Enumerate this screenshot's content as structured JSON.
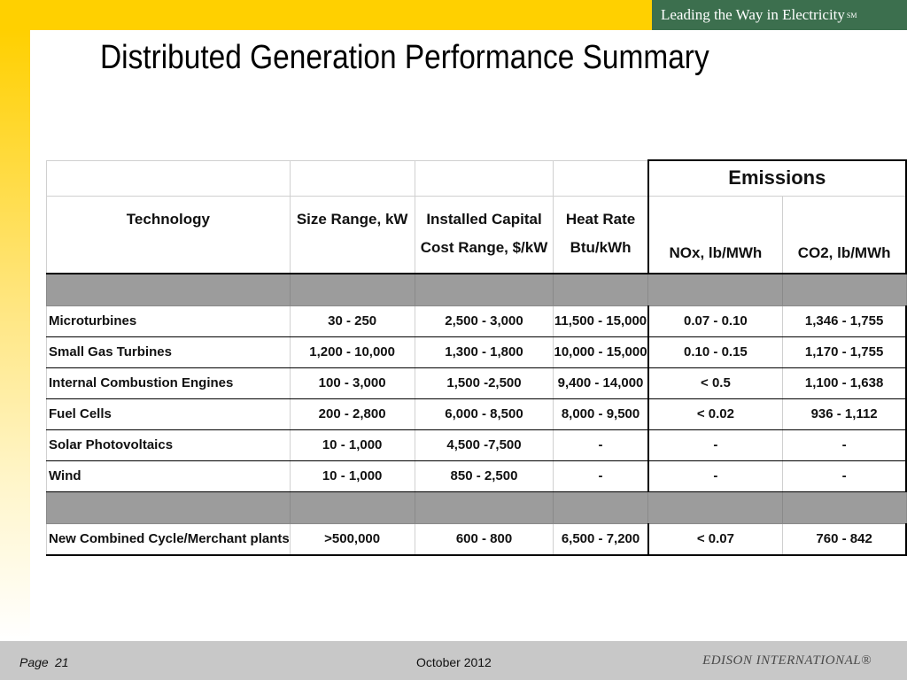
{
  "header": {
    "tagline": "Leading the Way in Electricity",
    "tagline_mark": "SM"
  },
  "slide": {
    "title": "Distributed Generation Performance Summary"
  },
  "table": {
    "group_header": "Emissions",
    "columns": {
      "technology": "Technology",
      "size_range": "Size Range, kW",
      "capital_cost_line1": "Installed Capital",
      "capital_cost_line2": "Cost Range, $/kW",
      "heat_rate_line1": "Heat Rate",
      "heat_rate_line2": "Btu/kWh",
      "nox": "NOx, lb/MWh",
      "co2": "CO2, lb/MWh"
    },
    "rows": [
      {
        "technology": "Microturbines",
        "size": "30 - 250",
        "cost": "2,500 - 3,000",
        "heat_rate": "11,500 - 15,000",
        "nox": "0.07 - 0.10",
        "co2": "1,346 - 1,755"
      },
      {
        "technology": "Small Gas Turbines",
        "size": "1,200 - 10,000",
        "cost": "1,300 - 1,800",
        "heat_rate": "10,000 - 15,000",
        "nox": "0.10 - 0.15",
        "co2": "1,170 - 1,755"
      },
      {
        "technology": "Internal Combustion Engines",
        "size": "100 - 3,000",
        "cost": "1,500 -2,500",
        "heat_rate": "9,400 - 14,000",
        "nox": "< 0.5",
        "co2": "1,100 - 1,638"
      },
      {
        "technology": "Fuel Cells",
        "size": "200 - 2,800",
        "cost": "6,000 - 8,500",
        "heat_rate": "8,000 - 9,500",
        "nox": "< 0.02",
        "co2": "936 - 1,112"
      },
      {
        "technology": "Solar Photovoltaics",
        "size": "10 - 1,000",
        "cost": "4,500 -7,500",
        "heat_rate": "-",
        "nox": "-",
        "co2": "-"
      },
      {
        "technology": "Wind",
        "size": "10 - 1,000",
        "cost": "850 - 2,500",
        "heat_rate": "-",
        "nox": "-",
        "co2": "-"
      }
    ],
    "reference_row": {
      "technology": "New Combined Cycle/Merchant plants",
      "size": ">500,000",
      "cost": "600 - 800",
      "heat_rate": "6,500 - 7,200",
      "nox": "< 0.07",
      "co2": "760 - 842"
    }
  },
  "footer": {
    "page_label": "Page",
    "page_number": "21",
    "date": "October 2012",
    "company": "EDISON INTERNATIONAL®"
  }
}
